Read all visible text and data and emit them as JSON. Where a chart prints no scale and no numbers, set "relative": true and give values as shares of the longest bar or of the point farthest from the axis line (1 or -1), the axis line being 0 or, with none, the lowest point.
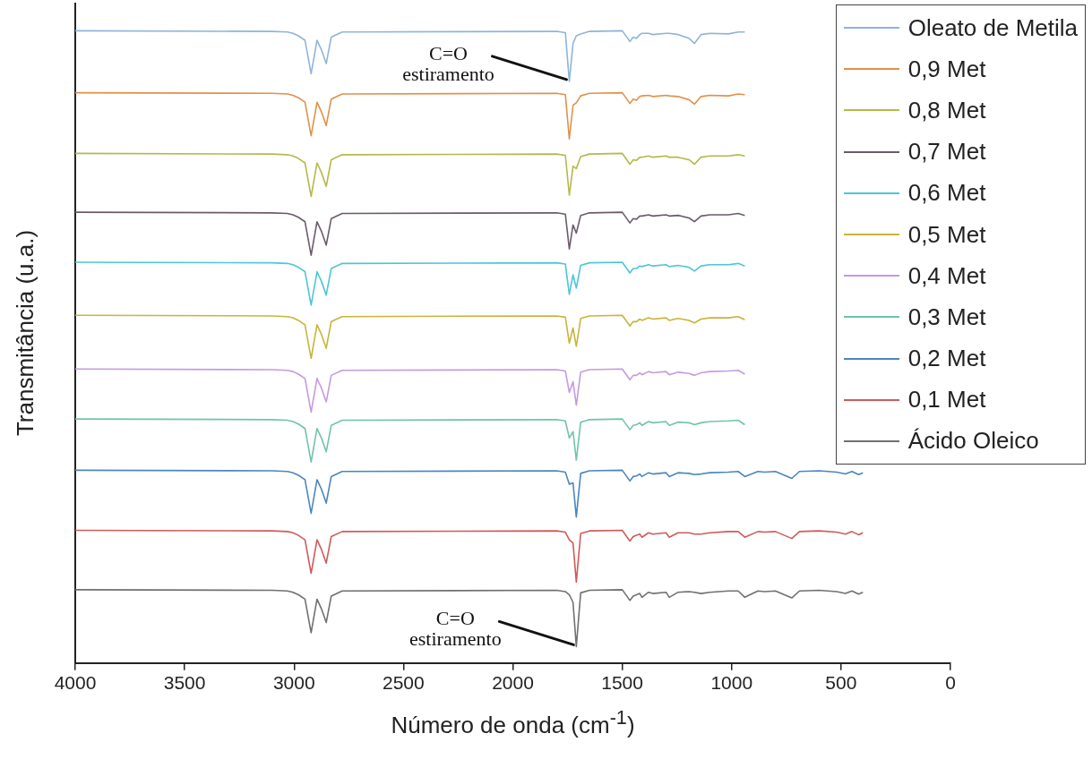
{
  "chart_data": {
    "type": "line",
    "xlabel": "Número de onda (cm$^{-1}$)",
    "ylabel": "Transmitância (u.a.)",
    "relative": true,
    "xlim": [
      4000,
      0
    ],
    "xticks": [
      4000,
      3500,
      3000,
      2500,
      2000,
      1500,
      1000,
      500,
      0
    ],
    "grid": false,
    "legend": "top right",
    "marker": "none",
    "line_style": "solid",
    "annotations": [
      {
        "text": "C=O\nestiramento",
        "x": 1742,
        "y": 0.92
      },
      {
        "text": "C=O\nestiramento",
        "x": 1710,
        "y": 0.026
      }
    ],
    "x": [
      4000,
      3100,
      3030,
      3005,
      2980,
      2950,
      2922,
      2895,
      2875,
      2853,
      2830,
      2780,
      1800,
      1760,
      1742,
      1725,
      1710,
      1690,
      1650,
      1500,
      1465,
      1450,
      1435,
      1420,
      1410,
      1380,
      1360,
      1300,
      1285,
      1245,
      1195,
      1170,
      1140,
      1100,
      1015,
      970,
      940,
      880,
      850,
      800,
      725,
      690,
      600,
      520,
      480,
      450,
      420,
      400
    ],
    "series": [
      {
        "name": "Oleato de Metila",
        "color": "#8fb4d8",
        "values": [
          1,
          0.999,
          0.998,
          0.996,
          0.992,
          0.985,
          0.932,
          0.985,
          0.97,
          0.948,
          0.99,
          0.998,
          0.999,
          0.997,
          0.92,
          0.98,
          0.992,
          0.995,
          0.999,
          1.0,
          0.983,
          0.99,
          0.988,
          0.994,
          0.996,
          0.996,
          0.994,
          0.996,
          0.996,
          0.994,
          0.988,
          0.98,
          0.994,
          0.996,
          0.995,
          0.998,
          0.998,
          null,
          null,
          null,
          null,
          null,
          null,
          null,
          null,
          null,
          null,
          null
        ]
      },
      {
        "name": "0,9 Met",
        "color": "#e0914a",
        "values": [
          0.902,
          0.901,
          0.9,
          0.898,
          0.894,
          0.887,
          0.834,
          0.887,
          0.872,
          0.85,
          0.892,
          0.9,
          0.901,
          0.899,
          0.829,
          0.882,
          0.886,
          0.897,
          0.901,
          0.902,
          0.885,
          0.892,
          0.89,
          0.896,
          0.897,
          0.898,
          0.896,
          0.898,
          0.897,
          0.896,
          0.891,
          0.884,
          0.896,
          0.898,
          0.897,
          0.9,
          0.899,
          null,
          null,
          null,
          null,
          null,
          null,
          null,
          null,
          null,
          null,
          null
        ]
      },
      {
        "name": "0,8 Met",
        "color": "#b5b84a",
        "values": [
          0.806,
          0.805,
          0.804,
          0.802,
          0.798,
          0.791,
          0.738,
          0.791,
          0.776,
          0.754,
          0.796,
          0.804,
          0.805,
          0.803,
          0.74,
          0.786,
          0.782,
          0.801,
          0.805,
          0.806,
          0.789,
          0.796,
          0.795,
          0.8,
          0.8,
          0.802,
          0.8,
          0.802,
          0.8,
          0.8,
          0.796,
          0.789,
          0.8,
          0.802,
          0.802,
          0.804,
          0.802,
          null,
          null,
          null,
          null,
          null,
          null,
          null,
          null,
          null,
          null,
          null
        ]
      },
      {
        "name": "0,7 Met",
        "color": "#6b5a6b",
        "values": [
          0.713,
          0.712,
          0.711,
          0.709,
          0.705,
          0.698,
          0.645,
          0.698,
          0.683,
          0.661,
          0.703,
          0.711,
          0.712,
          0.71,
          0.655,
          0.693,
          0.68,
          0.708,
          0.712,
          0.713,
          0.696,
          0.703,
          0.702,
          0.707,
          0.707,
          0.709,
          0.707,
          0.709,
          0.707,
          0.708,
          0.704,
          0.698,
          0.707,
          0.709,
          0.709,
          0.711,
          0.708,
          null,
          null,
          null,
          null,
          null,
          null,
          null,
          null,
          null,
          null,
          null
        ]
      },
      {
        "name": "0,6 Met",
        "color": "#4cc6d8",
        "values": [
          0.634,
          0.633,
          0.632,
          0.63,
          0.626,
          0.619,
          0.566,
          0.619,
          0.604,
          0.582,
          0.624,
          0.632,
          0.633,
          0.631,
          0.583,
          0.614,
          0.593,
          0.629,
          0.633,
          0.634,
          0.617,
          0.624,
          0.624,
          0.628,
          0.627,
          0.63,
          0.628,
          0.63,
          0.627,
          0.629,
          0.626,
          0.62,
          0.628,
          0.63,
          0.63,
          0.632,
          0.628,
          null,
          null,
          null,
          null,
          null,
          null,
          null,
          null,
          null,
          null,
          null
        ]
      },
      {
        "name": "0,5 Met",
        "color": "#c8b43a",
        "values": [
          0.55,
          0.549,
          0.548,
          0.546,
          0.542,
          0.535,
          0.482,
          0.535,
          0.52,
          0.498,
          0.54,
          0.548,
          0.549,
          0.547,
          0.506,
          0.53,
          0.501,
          0.545,
          0.549,
          0.55,
          0.533,
          0.54,
          0.54,
          0.544,
          0.542,
          0.546,
          0.544,
          0.546,
          0.542,
          0.545,
          0.542,
          0.538,
          0.544,
          0.546,
          0.546,
          0.548,
          0.543,
          null,
          null,
          null,
          null,
          null,
          null,
          null,
          null,
          null,
          null,
          null
        ]
      },
      {
        "name": "0,4 Met",
        "color": "#c39be0",
        "values": [
          0.465,
          0.464,
          0.463,
          0.461,
          0.457,
          0.45,
          0.397,
          0.45,
          0.435,
          0.413,
          0.455,
          0.463,
          0.464,
          0.462,
          0.428,
          0.445,
          0.408,
          0.46,
          0.464,
          0.465,
          0.448,
          0.455,
          0.455,
          0.459,
          0.456,
          0.461,
          0.459,
          0.461,
          0.456,
          0.46,
          0.458,
          0.455,
          0.459,
          0.461,
          0.462,
          0.463,
          0.457,
          null,
          null,
          null,
          null,
          null,
          null,
          null,
          null,
          null,
          null,
          null
        ]
      },
      {
        "name": "0,3 Met",
        "color": "#6fc4a8",
        "values": [
          0.386,
          0.385,
          0.384,
          0.382,
          0.378,
          0.371,
          0.318,
          0.371,
          0.356,
          0.334,
          0.376,
          0.384,
          0.385,
          0.383,
          0.356,
          0.366,
          0.321,
          0.381,
          0.385,
          0.386,
          0.369,
          0.376,
          0.377,
          0.38,
          0.376,
          0.382,
          0.38,
          0.382,
          0.376,
          0.381,
          0.38,
          0.377,
          0.38,
          0.382,
          0.383,
          0.384,
          0.377,
          null,
          null,
          null,
          null,
          null,
          null,
          null,
          null,
          null,
          null,
          null
        ]
      },
      {
        "name": "0,2 Met",
        "color": "#4a86c0",
        "values": [
          0.305,
          0.304,
          0.303,
          0.301,
          0.297,
          0.29,
          0.237,
          0.29,
          0.275,
          0.253,
          0.295,
          0.303,
          0.304,
          0.302,
          0.283,
          0.285,
          0.231,
          0.3,
          0.304,
          0.305,
          0.288,
          0.295,
          0.296,
          0.299,
          0.295,
          0.301,
          0.299,
          0.301,
          0.295,
          0.301,
          0.3,
          0.298,
          0.299,
          0.301,
          0.302,
          0.303,
          0.295,
          0.303,
          0.302,
          0.303,
          0.292,
          0.303,
          0.304,
          0.302,
          0.299,
          0.303,
          0.298,
          0.301
        ]
      },
      {
        "name": "0,1 Met",
        "color": "#d05a5a",
        "values": [
          0.21,
          0.209,
          0.208,
          0.206,
          0.202,
          0.195,
          0.142,
          0.195,
          0.18,
          0.158,
          0.2,
          0.208,
          0.209,
          0.207,
          0.195,
          0.19,
          0.128,
          0.205,
          0.209,
          0.21,
          0.193,
          0.2,
          0.202,
          0.204,
          0.199,
          0.206,
          0.204,
          0.206,
          0.199,
          0.206,
          0.206,
          0.204,
          0.204,
          0.206,
          0.208,
          0.208,
          0.199,
          0.208,
          0.207,
          0.208,
          0.197,
          0.208,
          0.209,
          0.207,
          0.204,
          0.208,
          0.203,
          0.206
        ]
      },
      {
        "name": "Ácido Oleico",
        "color": "#707070",
        "values": [
          0.116,
          0.115,
          0.114,
          0.112,
          0.108,
          0.101,
          0.048,
          0.101,
          0.086,
          0.064,
          0.106,
          0.114,
          0.115,
          0.113,
          0.108,
          0.096,
          0.026,
          0.111,
          0.115,
          0.116,
          0.099,
          0.106,
          0.108,
          0.11,
          0.104,
          0.112,
          0.11,
          0.112,
          0.104,
          0.112,
          0.113,
          0.112,
          0.11,
          0.112,
          0.114,
          0.114,
          0.104,
          0.114,
          0.113,
          0.114,
          0.103,
          0.114,
          0.115,
          0.113,
          0.11,
          0.114,
          0.109,
          0.112
        ]
      }
    ]
  }
}
